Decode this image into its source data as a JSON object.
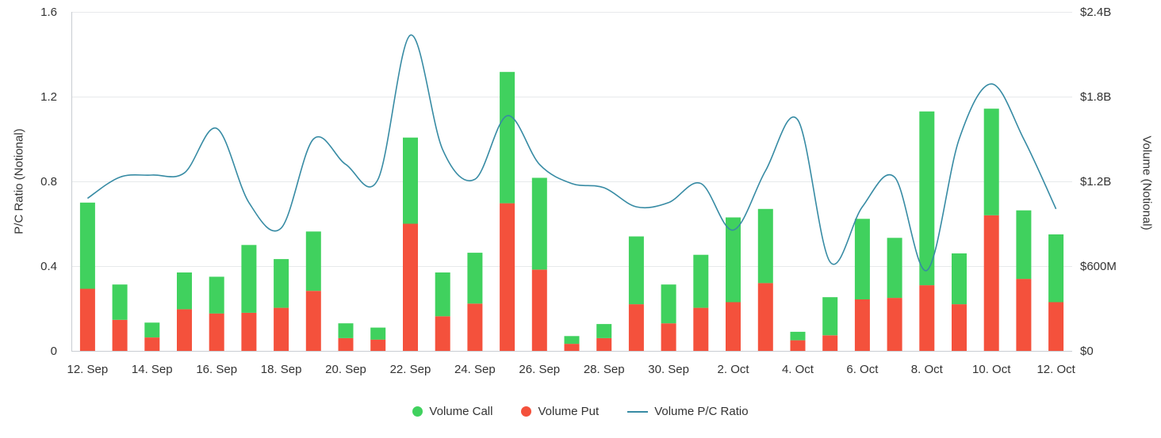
{
  "chart_data": {
    "type": "combo",
    "title": "",
    "legend_position": "bottom",
    "grid": "horizontal",
    "x": [
      "12 Sep",
      "13 Sep",
      "14 Sep",
      "15 Sep",
      "16 Sep",
      "17 Sep",
      "18 Sep",
      "19 Sep",
      "20 Sep",
      "21 Sep",
      "22 Sep",
      "23 Sep",
      "24 Sep",
      "25 Sep",
      "26 Sep",
      "27 Sep",
      "28 Sep",
      "29 Sep",
      "30 Sep",
      "1 Oct",
      "2 Oct",
      "3 Oct",
      "4 Oct",
      "5 Oct",
      "6 Oct",
      "7 Oct",
      "8 Oct",
      "9 Oct",
      "10 Oct",
      "11 Oct",
      "12 Oct"
    ],
    "x_axis": {
      "tick_labels": [
        "12. Sep",
        "14. Sep",
        "16. Sep",
        "18. Sep",
        "20. Sep",
        "22. Sep",
        "24. Sep",
        "26. Sep",
        "28. Sep",
        "30. Sep",
        "2. Oct",
        "4. Oct",
        "6. Oct",
        "8. Oct",
        "10. Oct",
        "12. Oct"
      ]
    },
    "left_axis": {
      "title": "P/C Ratio (Notional)",
      "min": 0,
      "max": 1.6,
      "tick_values": [
        0,
        0.4,
        0.8,
        1.2,
        1.6
      ],
      "tick_labels": [
        "0",
        "0.4",
        "0.8",
        "1.2",
        "1.6"
      ]
    },
    "right_axis": {
      "title": "Volume (Notional)",
      "min": 0,
      "max": 2400,
      "unit": "USD millions",
      "tick_values": [
        0,
        600,
        1200,
        1800,
        2400
      ],
      "tick_labels": [
        "$0",
        "$600M",
        "$1.2B",
        "$1.8B",
        "$2.4B"
      ]
    },
    "series": [
      {
        "name": "Volume Call",
        "type": "column",
        "stack": "volume",
        "axis": "right",
        "unit": "USD millions",
        "color": "#40d15e",
        "values": [
          610,
          250,
          105,
          260,
          260,
          480,
          345,
          420,
          105,
          85,
          610,
          310,
          360,
          930,
          650,
          55,
          100,
          480,
          275,
          375,
          600,
          525,
          60,
          270,
          570,
          425,
          1230,
          360,
          755,
          485,
          480
        ]
      },
      {
        "name": "Volume Put",
        "type": "column",
        "stack": "volume",
        "axis": "right",
        "unit": "USD millions",
        "color": "#f4513c",
        "values": [
          440,
          220,
          95,
          295,
          265,
          270,
          305,
          425,
          90,
          80,
          900,
          245,
          335,
          1045,
          575,
          50,
          90,
          330,
          195,
          305,
          345,
          480,
          75,
          110,
          365,
          375,
          465,
          330,
          960,
          510,
          345
        ]
      },
      {
        "name": "Volume P/C Ratio",
        "type": "spline",
        "axis": "left",
        "color": "#378ba4",
        "values": [
          0.72,
          0.82,
          0.83,
          0.84,
          1.05,
          0.7,
          0.58,
          1.0,
          0.88,
          0.81,
          1.49,
          0.95,
          0.81,
          1.11,
          0.88,
          0.79,
          0.77,
          0.68,
          0.7,
          0.79,
          0.57,
          0.85,
          1.09,
          0.42,
          0.68,
          0.82,
          0.38,
          1.0,
          1.26,
          1.0,
          0.67
        ]
      }
    ]
  }
}
